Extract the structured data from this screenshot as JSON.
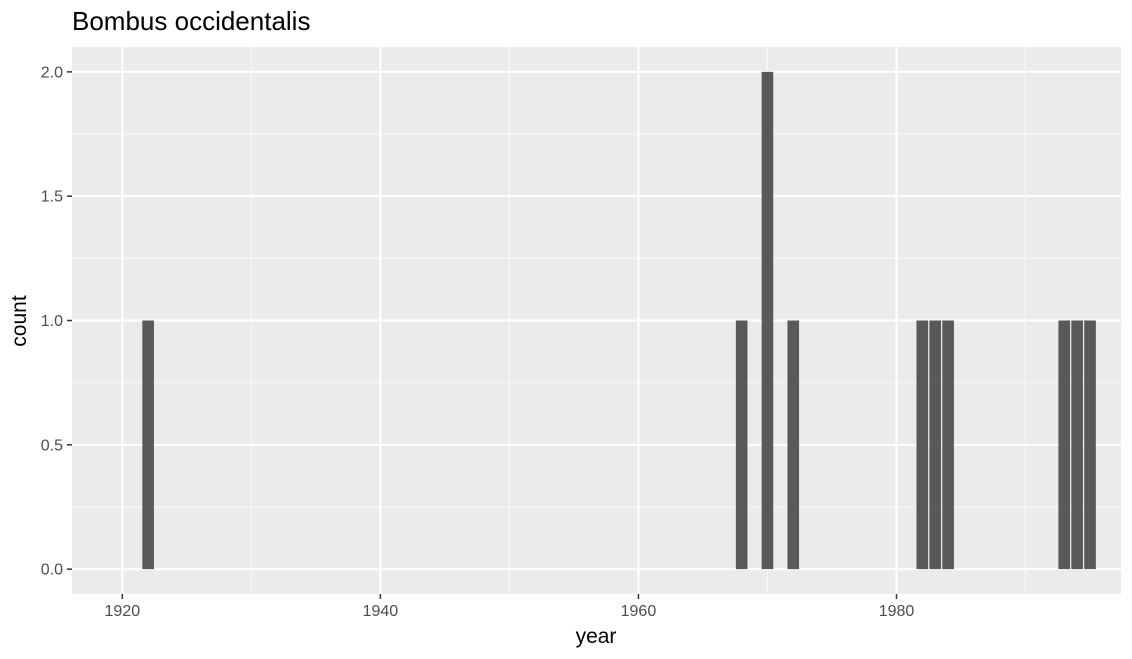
{
  "chart_data": {
    "type": "bar",
    "title": "Bombus occidentalis",
    "xlabel": "year",
    "ylabel": "count",
    "xlim": [
      1916.1,
      1997.4
    ],
    "ylim": [
      -0.1,
      2.1
    ],
    "xticks": [
      1920,
      1940,
      1960,
      1980
    ],
    "xtick_labels": [
      "1920",
      "1940",
      "1960",
      "1980"
    ],
    "yticks": [
      0,
      0.5,
      1,
      1.5,
      2
    ],
    "ytick_labels": [
      "0.0",
      "0.5",
      "1.0",
      "1.5",
      "2.0"
    ],
    "grid": true,
    "x": [
      1922,
      1968,
      1970,
      1972,
      1982,
      1983,
      1984,
      1993,
      1994,
      1995
    ],
    "values": [
      1,
      1,
      2,
      1,
      1,
      1,
      1,
      1,
      1,
      1
    ],
    "colors": {
      "panel": "#ebebeb",
      "grid_major": "#ffffff",
      "bar": "#595959",
      "tick": "#333333"
    }
  }
}
